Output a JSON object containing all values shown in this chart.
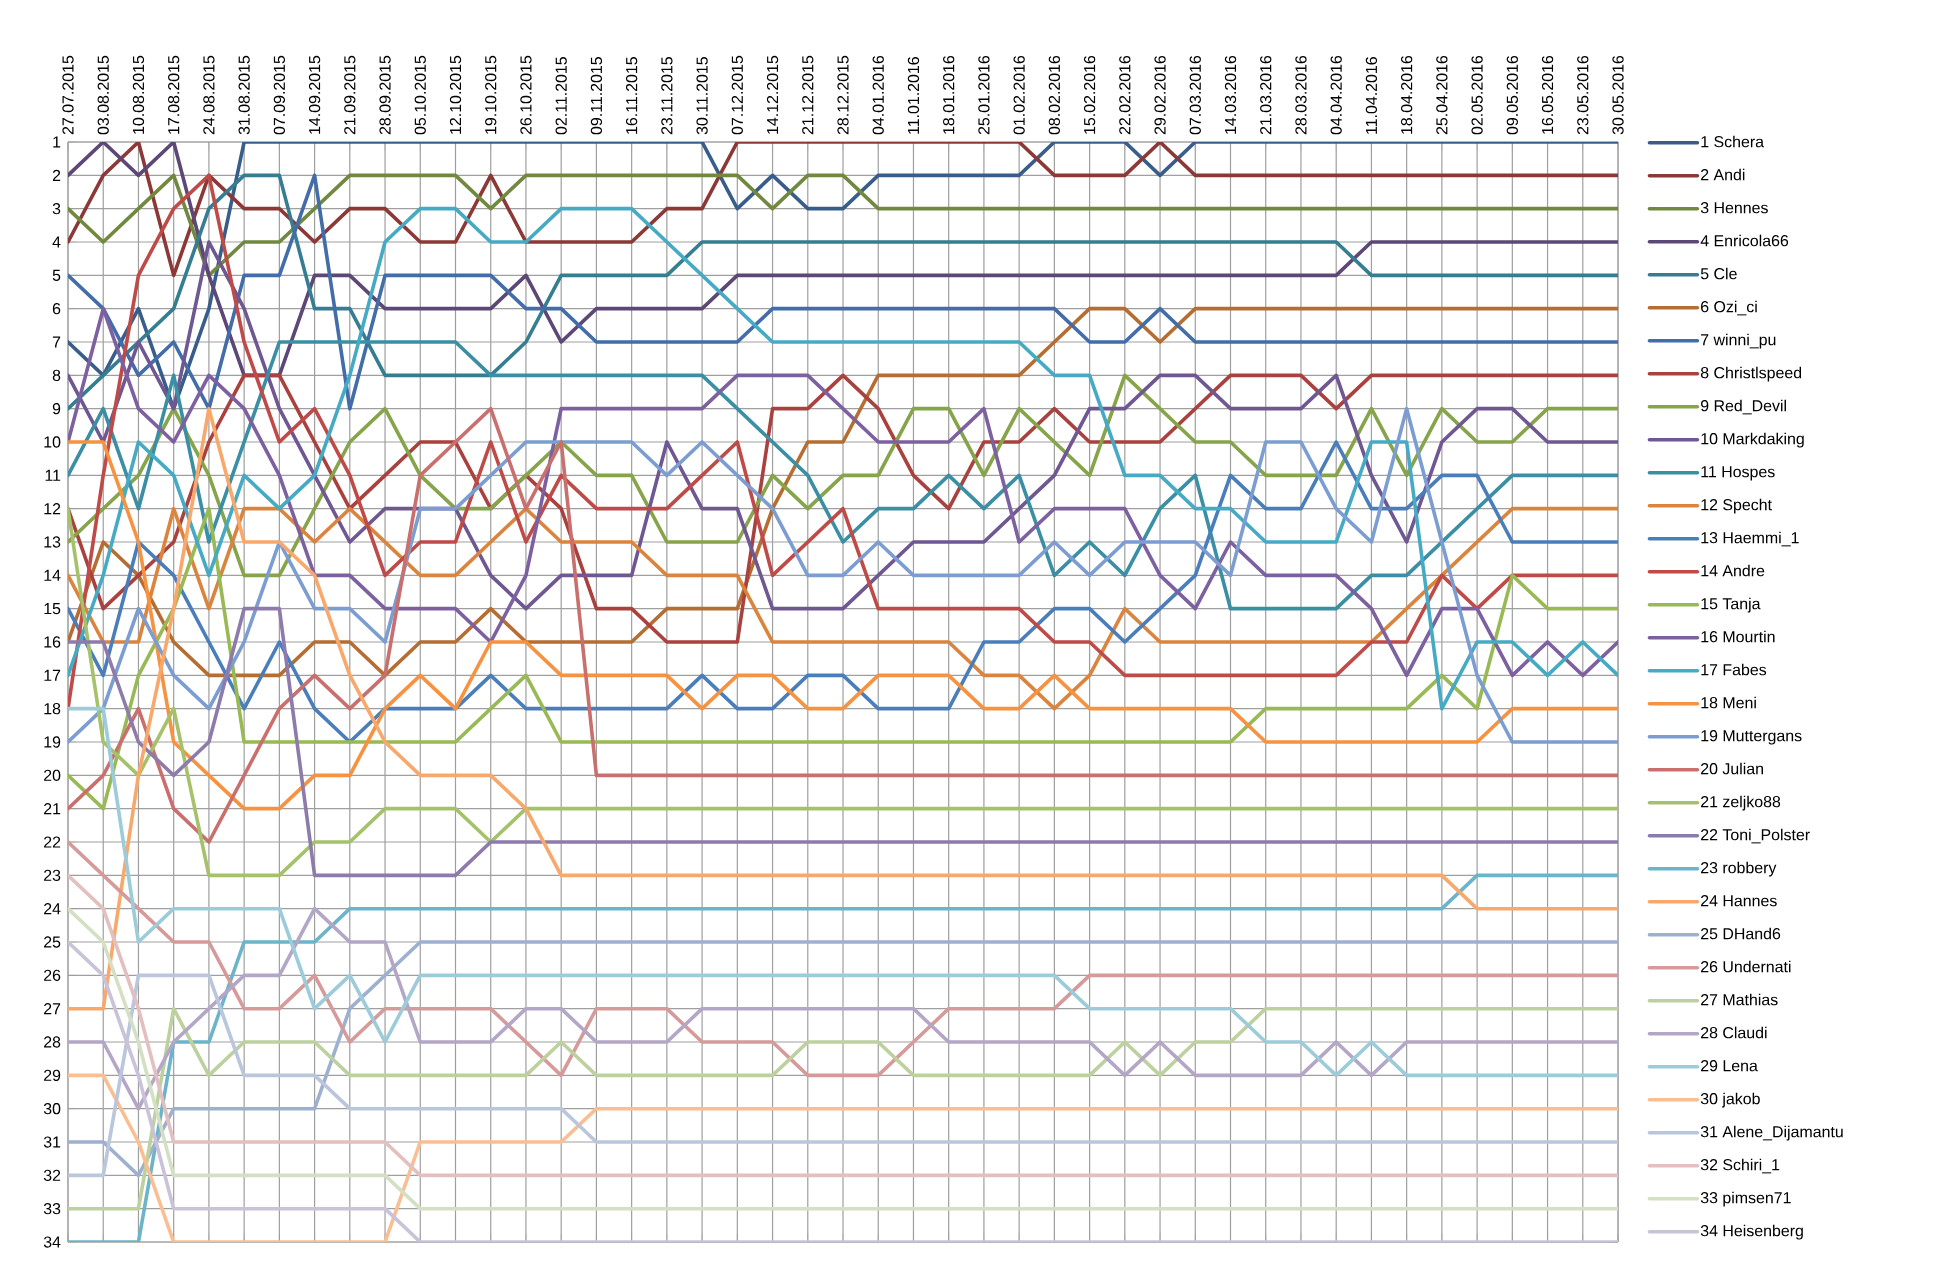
{
  "chart_data": {
    "type": "line",
    "categories": [
      "27.07.2015",
      "03.08.2015",
      "10.08.2015",
      "17.08.2015",
      "24.08.2015",
      "31.08.2015",
      "07.09.2015",
      "14.09.2015",
      "21.09.2015",
      "28.09.2015",
      "05.10.2015",
      "12.10.2015",
      "19.10.2015",
      "26.10.2015",
      "02.11.2015",
      "09.11.2015",
      "16.11.2015",
      "23.11.2015",
      "30.11.2015",
      "07.12.2015",
      "14.12.2015",
      "21.12.2015",
      "28.12.2015",
      "04.01.2016",
      "11.01.2016",
      "18.01.2016",
      "25.01.2016",
      "01.02.2016",
      "08.02.2016",
      "15.02.2016",
      "22.02.2016",
      "29.02.2016",
      "07.03.2016",
      "14.03.2016",
      "21.03.2016",
      "28.03.2016",
      "04.04.2016",
      "11.04.2016",
      "18.04.2016",
      "25.04.2016",
      "02.05.2016",
      "09.05.2016",
      "16.05.2016",
      "23.05.2016",
      "30.05.2016"
    ],
    "ylim": [
      34,
      1
    ],
    "yticks": [
      1,
      2,
      3,
      4,
      5,
      6,
      7,
      8,
      9,
      10,
      11,
      12,
      13,
      14,
      15,
      16,
      17,
      18,
      19,
      20,
      21,
      22,
      23,
      24,
      25,
      26,
      27,
      28,
      29,
      30,
      31,
      32,
      33,
      34
    ],
    "grid": true,
    "legend": "right",
    "series": [
      {
        "name": "1 Schera",
        "color": "#385d8a",
        "values": [
          7,
          8,
          6,
          9,
          6,
          1,
          1,
          1,
          1,
          1,
          1,
          1,
          1,
          1,
          1,
          1,
          1,
          1,
          1,
          3,
          2,
          3,
          3,
          2,
          2,
          2,
          2,
          2,
          1,
          1,
          1,
          2,
          1,
          1,
          1,
          1,
          1,
          1,
          1,
          1,
          1,
          1,
          1,
          1,
          1
        ]
      },
      {
        "name": "2 Andi",
        "color": "#8c3836",
        "values": [
          4,
          2,
          1,
          5,
          2,
          3,
          3,
          4,
          3,
          3,
          4,
          4,
          2,
          4,
          4,
          4,
          4,
          3,
          3,
          1,
          1,
          1,
          1,
          1,
          1,
          1,
          1,
          1,
          2,
          2,
          2,
          1,
          2,
          2,
          2,
          2,
          2,
          2,
          2,
          2,
          2,
          2,
          2,
          2,
          2
        ]
      },
      {
        "name": "3 Hennes",
        "color": "#71893f",
        "values": [
          3,
          4,
          3,
          2,
          5,
          4,
          4,
          3,
          2,
          2,
          2,
          2,
          3,
          2,
          2,
          2,
          2,
          2,
          2,
          2,
          3,
          2,
          2,
          3,
          3,
          3,
          3,
          3,
          3,
          3,
          3,
          3,
          3,
          3,
          3,
          3,
          3,
          3,
          3,
          3,
          3,
          3,
          3,
          3,
          3
        ]
      },
      {
        "name": "4 Enricola66",
        "color": "#5c4776",
        "values": [
          2,
          1,
          2,
          1,
          5,
          8,
          8,
          5,
          5,
          6,
          6,
          6,
          6,
          5,
          7,
          6,
          6,
          6,
          6,
          5,
          5,
          5,
          5,
          5,
          5,
          5,
          5,
          5,
          5,
          5,
          5,
          5,
          5,
          5,
          5,
          5,
          5,
          4,
          4,
          4,
          4,
          4,
          4,
          4,
          4
        ]
      },
      {
        "name": "5 Cle",
        "color": "#357d91",
        "values": [
          9,
          8,
          7,
          6,
          3,
          2,
          2,
          6,
          6,
          8,
          8,
          8,
          8,
          7,
          5,
          5,
          5,
          5,
          4,
          4,
          4,
          4,
          4,
          4,
          4,
          4,
          4,
          4,
          4,
          4,
          4,
          4,
          4,
          4,
          4,
          4,
          4,
          5,
          5,
          5,
          5,
          5,
          5,
          5,
          5
        ]
      },
      {
        "name": "6 Ozi_ci",
        "color": "#b66d31",
        "values": [
          16,
          13,
          14,
          16,
          17,
          17,
          17,
          16,
          16,
          17,
          16,
          16,
          15,
          16,
          16,
          16,
          16,
          15,
          15,
          15,
          12,
          10,
          10,
          8,
          8,
          8,
          8,
          8,
          7,
          6,
          6,
          7,
          6,
          6,
          6,
          6,
          6,
          6,
          6,
          6,
          6,
          6,
          6,
          6,
          6
        ]
      },
      {
        "name": "7 winni_pu",
        "color": "#426da9",
        "values": [
          5,
          6,
          8,
          7,
          9,
          5,
          5,
          2,
          9,
          5,
          5,
          5,
          5,
          6,
          6,
          7,
          7,
          7,
          7,
          7,
          6,
          6,
          6,
          6,
          6,
          6,
          6,
          6,
          6,
          7,
          7,
          6,
          7,
          7,
          7,
          7,
          7,
          7,
          7,
          7,
          7,
          7,
          7,
          7,
          7
        ]
      },
      {
        "name": "8 Christlspeed",
        "color": "#a9413e",
        "values": [
          12,
          15,
          14,
          13,
          10,
          8,
          8,
          10,
          12,
          11,
          10,
          10,
          12,
          11,
          12,
          15,
          15,
          16,
          16,
          16,
          9,
          9,
          8,
          9,
          11,
          12,
          10,
          10,
          9,
          10,
          10,
          10,
          9,
          8,
          8,
          8,
          9,
          8,
          8,
          8,
          8,
          8,
          8,
          8,
          8
        ]
      },
      {
        "name": "9 Red_Devil",
        "color": "#86a44a",
        "values": [
          13,
          12,
          11,
          9,
          11,
          14,
          14,
          12,
          10,
          9,
          11,
          12,
          12,
          11,
          10,
          11,
          11,
          13,
          13,
          13,
          11,
          12,
          11,
          11,
          9,
          9,
          11,
          9,
          10,
          11,
          8,
          9,
          10,
          10,
          11,
          11,
          11,
          9,
          11,
          9,
          10,
          10,
          9,
          9,
          9
        ]
      },
      {
        "name": "10 Markdaking",
        "color": "#6f5791",
        "values": [
          8,
          10,
          7,
          9,
          4,
          6,
          9,
          11,
          13,
          12,
          12,
          12,
          14,
          15,
          14,
          14,
          14,
          10,
          12,
          12,
          15,
          15,
          15,
          14,
          13,
          13,
          13,
          12,
          11,
          9,
          9,
          8,
          8,
          9,
          9,
          9,
          8,
          11,
          13,
          10,
          9,
          9,
          10,
          10,
          10
        ]
      },
      {
        "name": "11 Hospes",
        "color": "#3a8fa4",
        "values": [
          11,
          9,
          12,
          8,
          13,
          10,
          7,
          7,
          7,
          7,
          7,
          7,
          8,
          8,
          8,
          8,
          8,
          8,
          8,
          9,
          10,
          11,
          13,
          12,
          12,
          11,
          12,
          11,
          14,
          13,
          14,
          12,
          11,
          15,
          15,
          15,
          15,
          14,
          14,
          13,
          12,
          11,
          11,
          11,
          11
        ]
      },
      {
        "name": "12 Specht",
        "color": "#db843d",
        "values": [
          14,
          16,
          16,
          12,
          15,
          12,
          12,
          13,
          12,
          13,
          14,
          14,
          13,
          12,
          13,
          13,
          13,
          14,
          14,
          14,
          16,
          16,
          16,
          16,
          16,
          16,
          17,
          17,
          18,
          17,
          15,
          16,
          16,
          16,
          16,
          16,
          16,
          16,
          15,
          14,
          13,
          12,
          12,
          12,
          12
        ]
      },
      {
        "name": "13 Haemmi_1",
        "color": "#4a7ebb",
        "values": [
          15,
          17,
          13,
          14,
          16,
          18,
          16,
          18,
          19,
          18,
          18,
          18,
          17,
          18,
          18,
          18,
          18,
          18,
          17,
          18,
          18,
          17,
          17,
          18,
          18,
          18,
          16,
          16,
          15,
          15,
          16,
          15,
          14,
          11,
          12,
          12,
          10,
          12,
          12,
          11,
          11,
          13,
          13,
          13,
          13
        ]
      },
      {
        "name": "14 Andre",
        "color": "#be4b48",
        "values": [
          18,
          11,
          5,
          3,
          2,
          7,
          10,
          9,
          11,
          14,
          13,
          13,
          10,
          13,
          11,
          12,
          12,
          12,
          11,
          10,
          14,
          13,
          12,
          15,
          15,
          15,
          15,
          15,
          16,
          16,
          17,
          17,
          17,
          17,
          17,
          17,
          17,
          16,
          16,
          14,
          15,
          14,
          14,
          14,
          14
        ]
      },
      {
        "name": "15 Tanja",
        "color": "#98b954",
        "values": [
          20,
          21,
          17,
          15,
          12,
          19,
          19,
          19,
          19,
          19,
          19,
          19,
          18,
          17,
          19,
          19,
          19,
          19,
          19,
          19,
          19,
          19,
          19,
          19,
          19,
          19,
          19,
          19,
          19,
          19,
          19,
          19,
          19,
          19,
          18,
          18,
          18,
          18,
          18,
          17,
          18,
          14,
          15,
          15,
          15
        ]
      },
      {
        "name": "16 Mourtin",
        "color": "#7d60a0",
        "values": [
          10,
          6,
          9,
          10,
          8,
          9,
          11,
          14,
          14,
          15,
          15,
          15,
          16,
          14,
          9,
          9,
          9,
          9,
          9,
          8,
          8,
          8,
          9,
          10,
          10,
          10,
          9,
          13,
          12,
          12,
          12,
          14,
          15,
          13,
          14,
          14,
          14,
          15,
          17,
          15,
          15,
          17,
          16,
          17,
          16
        ]
      },
      {
        "name": "17 Fabes",
        "color": "#46aac5",
        "values": [
          17,
          14,
          10,
          11,
          14,
          11,
          12,
          11,
          8,
          4,
          3,
          3,
          4,
          4,
          3,
          3,
          3,
          4,
          5,
          6,
          7,
          7,
          7,
          7,
          7,
          7,
          7,
          7,
          8,
          8,
          11,
          11,
          12,
          12,
          13,
          13,
          13,
          10,
          10,
          18,
          16,
          16,
          17,
          16,
          17
        ]
      },
      {
        "name": "18 Meni",
        "color": "#f69240",
        "values": [
          10,
          10,
          13,
          19,
          20,
          21,
          21,
          20,
          20,
          18,
          17,
          18,
          16,
          16,
          17,
          17,
          17,
          17,
          18,
          17,
          17,
          18,
          18,
          17,
          17,
          17,
          18,
          18,
          17,
          18,
          18,
          18,
          18,
          18,
          19,
          19,
          19,
          19,
          19,
          19,
          19,
          18,
          18,
          18,
          18
        ]
      },
      {
        "name": "19 Muttergans",
        "color": "#7c9dd1",
        "values": [
          19,
          18,
          15,
          17,
          18,
          16,
          13,
          15,
          15,
          16,
          12,
          12,
          11,
          10,
          10,
          10,
          10,
          11,
          10,
          11,
          12,
          14,
          14,
          13,
          14,
          14,
          14,
          14,
          13,
          14,
          13,
          13,
          13,
          14,
          10,
          10,
          12,
          13,
          9,
          13,
          17,
          19,
          19,
          19,
          19
        ]
      },
      {
        "name": "20 Julian",
        "color": "#c9706e",
        "values": [
          21,
          20,
          18,
          21,
          22,
          20,
          18,
          17,
          18,
          17,
          11,
          10,
          9,
          12,
          10,
          20,
          20,
          20,
          20,
          20,
          20,
          20,
          20,
          20,
          20,
          20,
          20,
          20,
          20,
          20,
          20,
          20,
          20,
          20,
          20,
          20,
          20,
          20,
          20,
          20,
          20,
          20,
          20,
          20,
          20
        ]
      },
      {
        "name": "21 zeljko88",
        "color": "#a5c26b",
        "values": [
          12,
          19,
          20,
          18,
          23,
          23,
          23,
          22,
          22,
          21,
          21,
          21,
          22,
          21,
          21,
          21,
          21,
          21,
          21,
          21,
          21,
          21,
          21,
          21,
          21,
          21,
          21,
          21,
          21,
          21,
          21,
          21,
          21,
          21,
          21,
          21,
          21,
          21,
          21,
          21,
          21,
          21,
          21,
          21,
          21
        ]
      },
      {
        "name": "22 Toni_Polster",
        "color": "#8d7bab",
        "values": [
          16,
          16,
          19,
          20,
          19,
          15,
          15,
          23,
          23,
          23,
          23,
          23,
          22,
          22,
          22,
          22,
          22,
          22,
          22,
          22,
          22,
          22,
          22,
          22,
          22,
          22,
          22,
          22,
          22,
          22,
          22,
          22,
          22,
          22,
          22,
          22,
          22,
          22,
          22,
          22,
          22,
          22,
          22,
          22,
          22
        ]
      },
      {
        "name": "23 robbery",
        "color": "#6bb4c9",
        "values": [
          34,
          34,
          34,
          28,
          28,
          25,
          25,
          25,
          24,
          24,
          24,
          24,
          24,
          24,
          24,
          24,
          24,
          24,
          24,
          24,
          24,
          24,
          24,
          24,
          24,
          24,
          24,
          24,
          24,
          24,
          24,
          24,
          24,
          24,
          24,
          24,
          24,
          24,
          24,
          24,
          23,
          23,
          23,
          23,
          23
        ]
      },
      {
        "name": "24 Hannes",
        "color": "#f9a86c",
        "values": [
          27,
          27,
          20,
          15,
          9,
          13,
          13,
          14,
          17,
          19,
          20,
          20,
          20,
          21,
          23,
          23,
          23,
          23,
          23,
          23,
          23,
          23,
          23,
          23,
          23,
          23,
          23,
          23,
          23,
          23,
          23,
          23,
          23,
          23,
          23,
          23,
          23,
          23,
          23,
          23,
          24,
          24,
          24,
          24,
          24
        ]
      },
      {
        "name": "25 DHand6",
        "color": "#9eb0cf",
        "values": [
          31,
          31,
          32,
          30,
          30,
          30,
          30,
          30,
          27,
          26,
          25,
          25,
          25,
          25,
          25,
          25,
          25,
          25,
          25,
          25,
          25,
          25,
          25,
          25,
          25,
          25,
          25,
          25,
          25,
          25,
          25,
          25,
          25,
          25,
          25,
          25,
          25,
          25,
          25,
          25,
          25,
          25,
          25,
          25,
          25
        ]
      },
      {
        "name": "26 Undernati",
        "color": "#d59a99",
        "values": [
          22,
          23,
          24,
          25,
          25,
          27,
          27,
          26,
          28,
          27,
          27,
          27,
          27,
          28,
          29,
          27,
          27,
          27,
          28,
          28,
          28,
          29,
          29,
          29,
          28,
          27,
          27,
          27,
          27,
          26,
          26,
          26,
          26,
          26,
          26,
          26,
          26,
          26,
          26,
          26,
          26,
          26,
          26,
          26,
          26
        ]
      },
      {
        "name": "27 Mathias",
        "color": "#bdd19e",
        "values": [
          33,
          33,
          33,
          27,
          29,
          28,
          28,
          28,
          29,
          29,
          29,
          29,
          29,
          29,
          28,
          29,
          29,
          29,
          29,
          29,
          29,
          28,
          28,
          28,
          29,
          29,
          29,
          29,
          29,
          29,
          28,
          29,
          28,
          28,
          27,
          27,
          27,
          27,
          27,
          27,
          27,
          27,
          27,
          27,
          27
        ]
      },
      {
        "name": "28 Claudi",
        "color": "#b3a6c6",
        "values": [
          28,
          28,
          30,
          28,
          27,
          26,
          26,
          24,
          25,
          25,
          28,
          28,
          28,
          27,
          27,
          28,
          28,
          28,
          27,
          27,
          27,
          27,
          27,
          27,
          27,
          28,
          28,
          28,
          28,
          28,
          29,
          28,
          29,
          29,
          29,
          29,
          28,
          29,
          28,
          28,
          28,
          28,
          28,
          28,
          28
        ]
      },
      {
        "name": "29 Lena",
        "color": "#9ccbd9",
        "values": [
          18,
          18,
          25,
          24,
          24,
          24,
          24,
          27,
          26,
          28,
          26,
          26,
          26,
          26,
          26,
          26,
          26,
          26,
          26,
          26,
          26,
          26,
          26,
          26,
          26,
          26,
          26,
          26,
          26,
          27,
          27,
          27,
          27,
          27,
          28,
          28,
          29,
          28,
          29,
          29,
          29,
          29,
          29,
          29,
          29
        ]
      },
      {
        "name": "30 jakob",
        "color": "#fbbe92",
        "values": [
          29,
          29,
          31,
          34,
          34,
          34,
          34,
          34,
          34,
          34,
          31,
          31,
          31,
          31,
          31,
          30,
          30,
          30,
          30,
          30,
          30,
          30,
          30,
          30,
          30,
          30,
          30,
          30,
          30,
          30,
          30,
          30,
          30,
          30,
          30,
          30,
          30,
          30,
          30,
          30,
          30,
          30,
          30,
          30,
          30
        ]
      },
      {
        "name": "31 Alene_Dijamantu",
        "color": "#bac6dc",
        "values": [
          32,
          32,
          26,
          26,
          26,
          29,
          29,
          29,
          30,
          30,
          30,
          30,
          30,
          30,
          30,
          31,
          31,
          31,
          31,
          31,
          31,
          31,
          31,
          31,
          31,
          31,
          31,
          31,
          31,
          31,
          31,
          31,
          31,
          31,
          31,
          31,
          31,
          31,
          31,
          31,
          31,
          31,
          31,
          31,
          31
        ]
      },
      {
        "name": "32 Schiri_1",
        "color": "#e3bfbf",
        "values": [
          23,
          24,
          27,
          31,
          31,
          31,
          31,
          31,
          31,
          31,
          32,
          32,
          32,
          32,
          32,
          32,
          32,
          32,
          32,
          32,
          32,
          32,
          32,
          32,
          32,
          32,
          32,
          32,
          32,
          32,
          32,
          32,
          32,
          32,
          32,
          32,
          32,
          32,
          32,
          32,
          32,
          32,
          32,
          32,
          32
        ]
      },
      {
        "name": "33 pimsen71",
        "color": "#d4e0c3",
        "values": [
          24,
          25,
          28,
          32,
          32,
          32,
          32,
          32,
          32,
          32,
          33,
          33,
          33,
          33,
          33,
          33,
          33,
          33,
          33,
          33,
          33,
          33,
          33,
          33,
          33,
          33,
          33,
          33,
          33,
          33,
          33,
          33,
          33,
          33,
          33,
          33,
          33,
          33,
          33,
          33,
          33,
          33,
          33,
          33,
          33
        ]
      },
      {
        "name": "34 Heisenberg",
        "color": "#cac2d8",
        "values": [
          25,
          26,
          29,
          33,
          33,
          33,
          33,
          33,
          33,
          33,
          34,
          34,
          34,
          34,
          34,
          34,
          34,
          34,
          34,
          34,
          34,
          34,
          34,
          34,
          34,
          34,
          34,
          34,
          34,
          34,
          34,
          34,
          34,
          34,
          34,
          34,
          34,
          34,
          34,
          34,
          34,
          34,
          34,
          34,
          34
        ]
      }
    ]
  }
}
